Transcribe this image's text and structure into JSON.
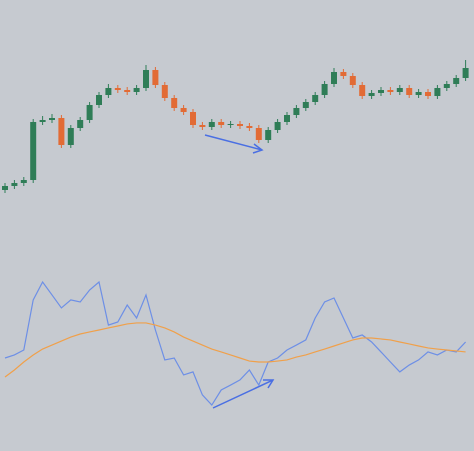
{
  "chart_data": [
    {
      "type": "candlestick",
      "ylim": [
        100,
        300
      ],
      "up_color": "#2f7d57",
      "down_color": "#e26b35",
      "open": [
        110,
        114,
        117,
        120,
        178,
        180,
        182,
        155,
        172,
        180,
        195,
        205,
        212,
        210,
        208,
        212,
        230,
        215,
        202,
        192,
        188,
        175,
        173,
        178,
        175,
        176,
        174,
        172,
        160,
        170,
        178,
        185,
        192,
        198,
        205,
        216,
        228,
        224,
        215,
        204,
        207,
        210,
        208,
        212,
        205,
        208,
        204,
        212,
        216,
        222
      ],
      "high": [
        117,
        120,
        123,
        181,
        184,
        186,
        185,
        175,
        183,
        198,
        208,
        216,
        215,
        213,
        215,
        235,
        233,
        218,
        205,
        195,
        191,
        178,
        181,
        181,
        179,
        179,
        177,
        175,
        173,
        181,
        188,
        195,
        201,
        208,
        219,
        232,
        231,
        227,
        218,
        210,
        213,
        213,
        215,
        215,
        211,
        211,
        215,
        219,
        225,
        240
      ],
      "low": [
        107,
        111,
        114,
        117,
        175,
        177,
        152,
        152,
        169,
        177,
        192,
        202,
        207,
        205,
        205,
        209,
        212,
        199,
        189,
        185,
        172,
        170,
        170,
        172,
        172,
        171,
        169,
        157,
        157,
        167,
        175,
        182,
        189,
        195,
        202,
        213,
        221,
        212,
        201,
        201,
        204,
        205,
        205,
        202,
        202,
        201,
        201,
        209,
        213,
        219
      ],
      "close": [
        114,
        117,
        120,
        178,
        180,
        182,
        155,
        172,
        180,
        195,
        205,
        212,
        210,
        208,
        212,
        230,
        215,
        202,
        192,
        188,
        175,
        173,
        178,
        175,
        176,
        174,
        172,
        160,
        170,
        178,
        185,
        192,
        198,
        205,
        216,
        228,
        224,
        215,
        204,
        207,
        210,
        208,
        212,
        205,
        208,
        204,
        212,
        216,
        222,
        232
      ]
    },
    {
      "type": "line",
      "ylim": [
        0,
        100
      ],
      "series": [
        {
          "color": "#6d8fe6",
          "values": [
            45,
            46.9,
            50,
            81.3,
            92.5,
            84.4,
            76.3,
            81.3,
            80,
            87.5,
            92.5,
            65.6,
            67.5,
            78.1,
            70,
            84.4,
            62.5,
            43.8,
            45,
            34.4,
            36.3,
            21.9,
            15.6,
            25,
            28.1,
            31.3,
            37.5,
            28.1,
            42.5,
            45,
            50,
            53.1,
            56.3,
            70,
            80,
            82.5,
            70,
            57.5,
            59.4,
            55,
            48.8,
            42.5,
            36.3,
            40.6,
            43.8,
            48.8,
            46.9,
            50,
            48.8,
            55
          ]
        },
        {
          "color": "#f0a04a",
          "values": [
            33.1,
            37.5,
            42.5,
            46.9,
            50.6,
            53.1,
            55.6,
            58.1,
            60,
            61.3,
            62.5,
            63.8,
            65,
            66.3,
            66.9,
            66.9,
            65.6,
            63.8,
            61.3,
            58.1,
            55.6,
            53.1,
            50.6,
            48.8,
            46.9,
            45,
            43.1,
            42.5,
            42.5,
            43.1,
            43.8,
            45.6,
            46.9,
            48.8,
            50.6,
            52.5,
            54.4,
            56.3,
            57.5,
            57.5,
            56.9,
            56.3,
            55,
            53.8,
            52.5,
            51.3,
            50.6,
            50,
            49.4,
            48.8
          ]
        }
      ]
    }
  ]
}
